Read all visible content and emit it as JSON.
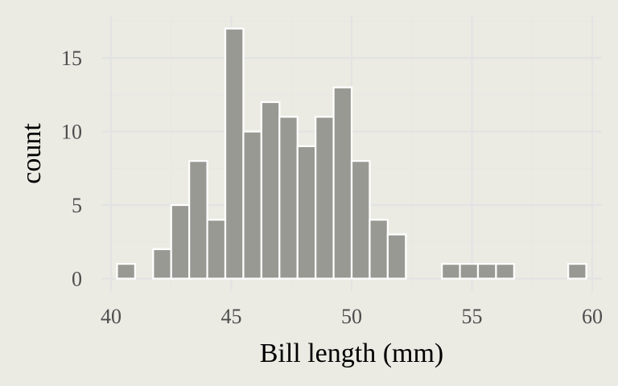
{
  "chart_data": {
    "type": "bar",
    "title": "",
    "xlabel": "Bill length (mm)",
    "ylabel": "count",
    "xlim": [
      39.6,
      60.4
    ],
    "ylim": [
      -0.85,
      17.85
    ],
    "grid": true,
    "x_ticks": [
      {
        "value": 40,
        "label": "40"
      },
      {
        "value": 45,
        "label": "45"
      },
      {
        "value": 50,
        "label": "50"
      },
      {
        "value": 55,
        "label": "55"
      },
      {
        "value": 60,
        "label": "60"
      }
    ],
    "y_ticks": [
      {
        "value": 0,
        "label": "0"
      },
      {
        "value": 5,
        "label": "5"
      },
      {
        "value": 10,
        "label": "10"
      },
      {
        "value": 15,
        "label": "15"
      }
    ],
    "bins": [
      {
        "x0": 40.25,
        "x1": 41.0,
        "count": 1
      },
      {
        "x0": 41.0,
        "x1": 41.75,
        "count": 0
      },
      {
        "x0": 41.75,
        "x1": 42.5,
        "count": 2
      },
      {
        "x0": 42.5,
        "x1": 43.25,
        "count": 5
      },
      {
        "x0": 43.25,
        "x1": 44.0,
        "count": 8
      },
      {
        "x0": 44.0,
        "x1": 44.75,
        "count": 4
      },
      {
        "x0": 44.75,
        "x1": 45.5,
        "count": 17
      },
      {
        "x0": 45.5,
        "x1": 46.25,
        "count": 10
      },
      {
        "x0": 46.25,
        "x1": 47.0,
        "count": 12
      },
      {
        "x0": 47.0,
        "x1": 47.75,
        "count": 11
      },
      {
        "x0": 47.75,
        "x1": 48.5,
        "count": 9
      },
      {
        "x0": 48.5,
        "x1": 49.25,
        "count": 11
      },
      {
        "x0": 49.25,
        "x1": 50.0,
        "count": 13
      },
      {
        "x0": 50.0,
        "x1": 50.75,
        "count": 8
      },
      {
        "x0": 50.75,
        "x1": 51.5,
        "count": 4
      },
      {
        "x0": 51.5,
        "x1": 52.25,
        "count": 3
      },
      {
        "x0": 52.25,
        "x1": 53.0,
        "count": 0
      },
      {
        "x0": 53.0,
        "x1": 53.75,
        "count": 0
      },
      {
        "x0": 53.75,
        "x1": 54.5,
        "count": 1
      },
      {
        "x0": 54.5,
        "x1": 55.25,
        "count": 1
      },
      {
        "x0": 55.25,
        "x1": 56.0,
        "count": 1
      },
      {
        "x0": 56.0,
        "x1": 56.75,
        "count": 1
      },
      {
        "x0": 56.75,
        "x1": 57.5,
        "count": 0
      },
      {
        "x0": 57.5,
        "x1": 58.25,
        "count": 0
      },
      {
        "x0": 58.25,
        "x1": 59.0,
        "count": 0
      },
      {
        "x0": 59.0,
        "x1": 59.75,
        "count": 1
      }
    ]
  },
  "colors": {
    "background": "#ebebe4",
    "panel": "#ebebe4",
    "grid_major": "#e3e3e3",
    "grid_minor": "#e7e7e4",
    "bar_fill": "#999994",
    "bar_stroke": "#ffffff"
  }
}
